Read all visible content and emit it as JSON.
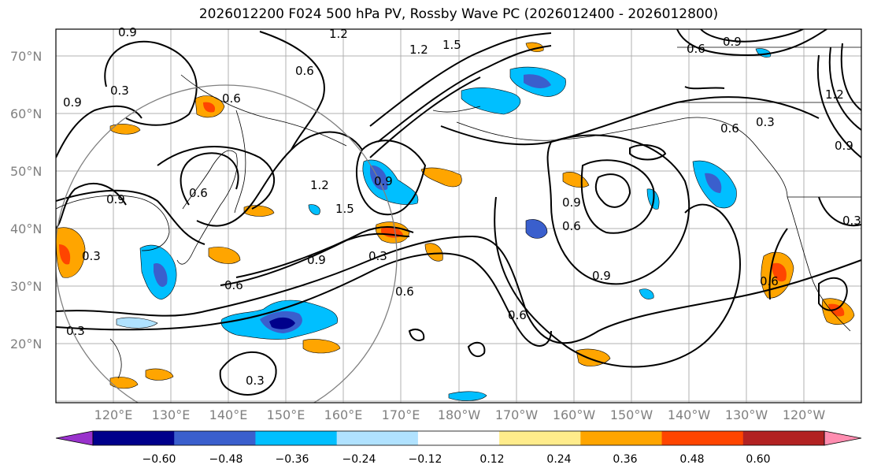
{
  "title": "2026012200 F024 500 hPa PV, Rossby Wave PC (2026012400 - 2026012800)",
  "lat_labels": [
    "70°N",
    "60°N",
    "50°N",
    "40°N",
    "30°N",
    "20°N"
  ],
  "lon_labels": [
    "120°E",
    "130°E",
    "140°E",
    "150°E",
    "160°E",
    "170°E",
    "180°W",
    "170°W",
    "160°W",
    "150°W",
    "140°W",
    "130°W",
    "120°W"
  ],
  "contour_labels": [
    "0.3",
    "0.6",
    "0.9",
    "1.2",
    "1.5"
  ],
  "colorbar": {
    "ticks": [
      "−0.60",
      "−0.48",
      "−0.36",
      "−0.24",
      "−0.12",
      "0.12",
      "0.24",
      "0.36",
      "0.48",
      "0.60"
    ],
    "colors": [
      "#9932CC",
      "#00008B",
      "#3A5FCD",
      "#00BFFF",
      "#B0E2FF",
      "#FFFFFF",
      "#FFEC8B",
      "#FFA500",
      "#FF4500",
      "#B22222",
      "#FF8DB0"
    ]
  }
}
